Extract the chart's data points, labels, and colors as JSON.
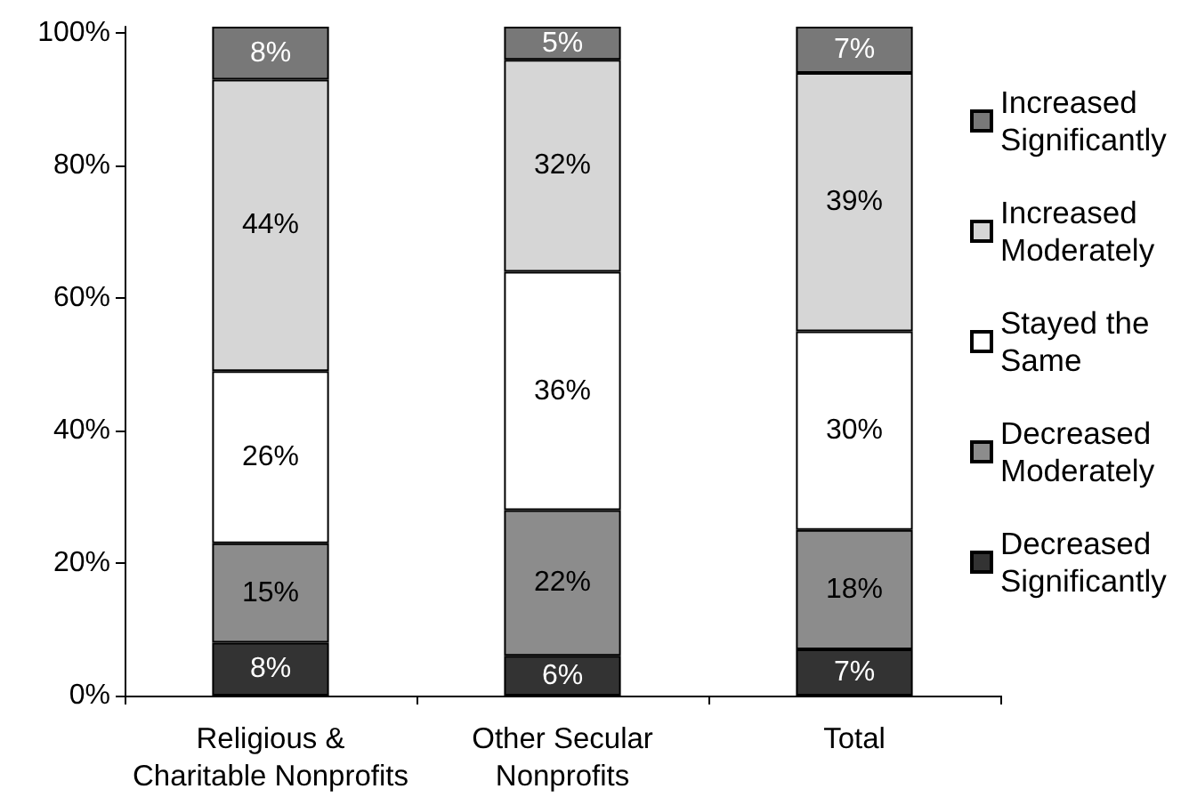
{
  "chart_data": {
    "type": "bar",
    "stacked": true,
    "legend": "right",
    "categories": [
      "Religious & Charitable Nonprofits",
      "Other Secular Nonprofits",
      "Total"
    ],
    "series": [
      {
        "name": "Decreased Significantly",
        "color": "#333333",
        "values": [
          8,
          6,
          7
        ],
        "value_labels": [
          "8%",
          "6%",
          "7%"
        ]
      },
      {
        "name": "Decreased Moderately",
        "color": "#8c8c8c",
        "values": [
          15,
          22,
          18
        ],
        "value_labels": [
          "15%",
          "22%",
          "18%"
        ]
      },
      {
        "name": "Stayed the Same",
        "color": "#ffffff",
        "values": [
          26,
          36,
          30
        ],
        "value_labels": [
          "26%",
          "36%",
          "30%"
        ]
      },
      {
        "name": "Increased Moderately",
        "color": "#d6d6d6",
        "values": [
          44,
          32,
          39
        ],
        "value_labels": [
          "44%",
          "32%",
          "39%"
        ]
      },
      {
        "name": "Increased Significantly",
        "color": "#787878",
        "values": [
          8,
          5,
          7
        ],
        "value_labels": [
          "8%",
          "5%",
          "7%"
        ]
      }
    ],
    "ylim": [
      0,
      101
    ],
    "yticks": [
      {
        "value": 0,
        "label": "0%"
      },
      {
        "value": 20,
        "label": "20%"
      },
      {
        "value": 40,
        "label": "40%"
      },
      {
        "value": 60,
        "label": "60%"
      },
      {
        "value": 80,
        "label": "80%"
      },
      {
        "value": 100,
        "label": "100%"
      }
    ]
  }
}
